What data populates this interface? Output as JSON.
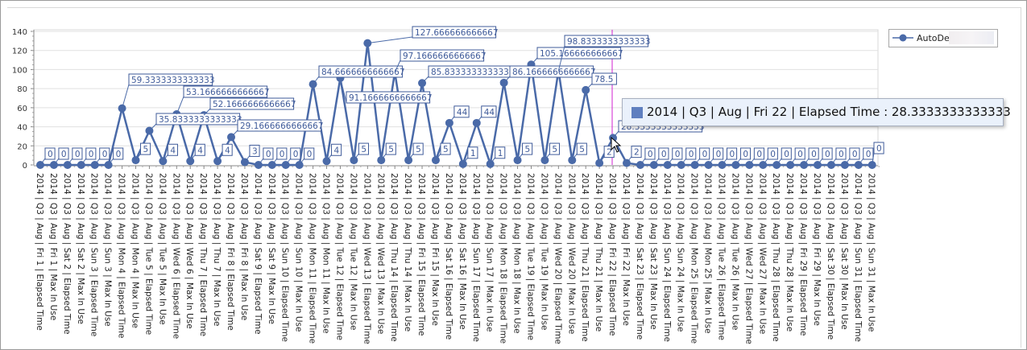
{
  "chart_data": {
    "type": "line",
    "title": "",
    "xlabel": "",
    "ylabel": "",
    "ylim": [
      0,
      140
    ],
    "yticks": [
      0,
      20,
      40,
      60,
      80,
      100,
      120,
      140
    ],
    "grid": true,
    "legend_position": "top-right",
    "series_color": "#4a6aa8",
    "categories": [
      "2014 | Q3 | Aug | Fri 1 | Elapsed Time",
      "2014 | Q3 | Aug | Fri 1 | Max In Use",
      "2014 | Q3 | Aug | Sat 2 | Elapsed Time",
      "2014 | Q3 | Aug | Sat 2 | Max In Use",
      "2014 | Q3 | Aug | Sun 3 | Elapsed Time",
      "2014 | Q3 | Aug | Sun 3 | Max In Use",
      "2014 | Q3 | Aug | Mon 4 | Elapsed Time",
      "2014 | Q3 | Aug | Mon 4 | Max In Use",
      "2014 | Q3 | Aug | Tue 5 | Elapsed Time",
      "2014 | Q3 | Aug | Tue 5 | Max In Use",
      "2014 | Q3 | Aug | Wed 6 | Elapsed Time",
      "2014 | Q3 | Aug | Wed 6 | Max In Use",
      "2014 | Q3 | Aug | Thu 7 | Elapsed Time",
      "2014 | Q3 | Aug | Thu 7 | Max In Use",
      "2014 | Q3 | Aug | Fri 8 | Elapsed Time",
      "2014 | Q3 | Aug | Fri 8 | Max In Use",
      "2014 | Q3 | Aug | Sat 9 | Elapsed Time",
      "2014 | Q3 | Aug | Sat 9 | Max In Use",
      "2014 | Q3 | Aug | Sun 10 | Elapsed Time",
      "2014 | Q3 | Aug | Sun 10 | Max In Use",
      "2014 | Q3 | Aug | Mon 11 | Elapsed Time",
      "2014 | Q3 | Aug | Mon 11 | Max In Use",
      "2014 | Q3 | Aug | Tue 12 | Elapsed Time",
      "2014 | Q3 | Aug | Tue 12 | Max In Use",
      "2014 | Q3 | Aug | Wed 13 | Elapsed Time",
      "2014 | Q3 | Aug | Wed 13 | Max In Use",
      "2014 | Q3 | Aug | Thu 14 | Elapsed Time",
      "2014 | Q3 | Aug | Thu 14 | Max In Use",
      "2014 | Q3 | Aug | Fri 15 | Elapsed Time",
      "2014 | Q3 | Aug | Fri 15 | Max In Use",
      "2014 | Q3 | Aug | Sat 16 | Elapsed Time",
      "2014 | Q3 | Aug | Sat 16 | Max In Use",
      "2014 | Q3 | Aug | Sun 17 | Elapsed Time",
      "2014 | Q3 | Aug | Sun 17 | Max In Use",
      "2014 | Q3 | Aug | Mon 18 | Elapsed Time",
      "2014 | Q3 | Aug | Mon 18 | Max In Use",
      "2014 | Q3 | Aug | Tue 19 | Elapsed Time",
      "2014 | Q3 | Aug | Tue 19 | Max In Use",
      "2014 | Q3 | Aug | Wed 20 | Elapsed Time",
      "2014 | Q3 | Aug | Wed 20 | Max In Use",
      "2014 | Q3 | Aug | Thu 21 | Elapsed Time",
      "2014 | Q3 | Aug | Thu 21 | Max In Use",
      "2014 | Q3 | Aug | Fri 22 | Elapsed Time",
      "2014 | Q3 | Aug | Fri 22 | Max In Use",
      "2014 | Q3 | Aug | Sat 23 | Elapsed Time",
      "2014 | Q3 | Aug | Sat 23 | Max In Use",
      "2014 | Q3 | Aug | Sun 24 | Elapsed Time",
      "2014 | Q3 | Aug | Sun 24 | Max In Use",
      "2014 | Q3 | Aug | Mon 25 | Elapsed Time",
      "2014 | Q3 | Aug | Mon 25 | Max In Use",
      "2014 | Q3 | Aug | Tue 26 | Elapsed Time",
      "2014 | Q3 | Aug | Tue 26 | Max In Use",
      "2014 | Q3 | Aug | Wed 27 | Elapsed Time",
      "2014 | Q3 | Aug | Wed 27 | Max In Use",
      "2014 | Q3 | Aug | Thu 28 | Elapsed Time",
      "2014 | Q3 | Aug | Thu 28 | Max In Use",
      "2014 | Q3 | Aug | Fri 29 | Elapsed Time",
      "2014 | Q3 | Aug | Fri 29 | Max In Use",
      "2014 | Q3 | Aug | Sat 30 | Elapsed Time",
      "2014 | Q3 | Aug | Sat 30 | Max In Use",
      "2014 | Q3 | Aug | Sun 31 | Elapsed Time",
      "2014 | Q3 | Aug | Sun 31 | Max In Use"
    ],
    "series": [
      {
        "name": "AutoDesk",
        "values": [
          0,
          0,
          0,
          0,
          0,
          0,
          59.3333333333333,
          5,
          35.8333333333333,
          4,
          53.1666666666667,
          4,
          52.1666666666667,
          4,
          29.1666666666667,
          3,
          0,
          0,
          0,
          0,
          84.6666666666667,
          4,
          91.1666666666667,
          5,
          127.666666666667,
          5,
          97.1666666666667,
          5,
          85.8333333333333,
          5,
          44,
          1,
          44,
          1,
          86.1666666666667,
          5,
          105.166666666667,
          5,
          98.8333333333333,
          5,
          78.5,
          2,
          28.3333333333333,
          2,
          0,
          0,
          0,
          0,
          0,
          0,
          0,
          0,
          0,
          0,
          0,
          0,
          0,
          0,
          0,
          0,
          0,
          0
        ]
      }
    ],
    "legend": {
      "label": "AutoDesk"
    },
    "crosshair_color": "#d020d0",
    "tooltip": {
      "text": "2014 | Q3 | Aug | Fri 22 | Elapsed Time : 28.3333333333333",
      "swatch_color": "#5f7fbf"
    }
  }
}
